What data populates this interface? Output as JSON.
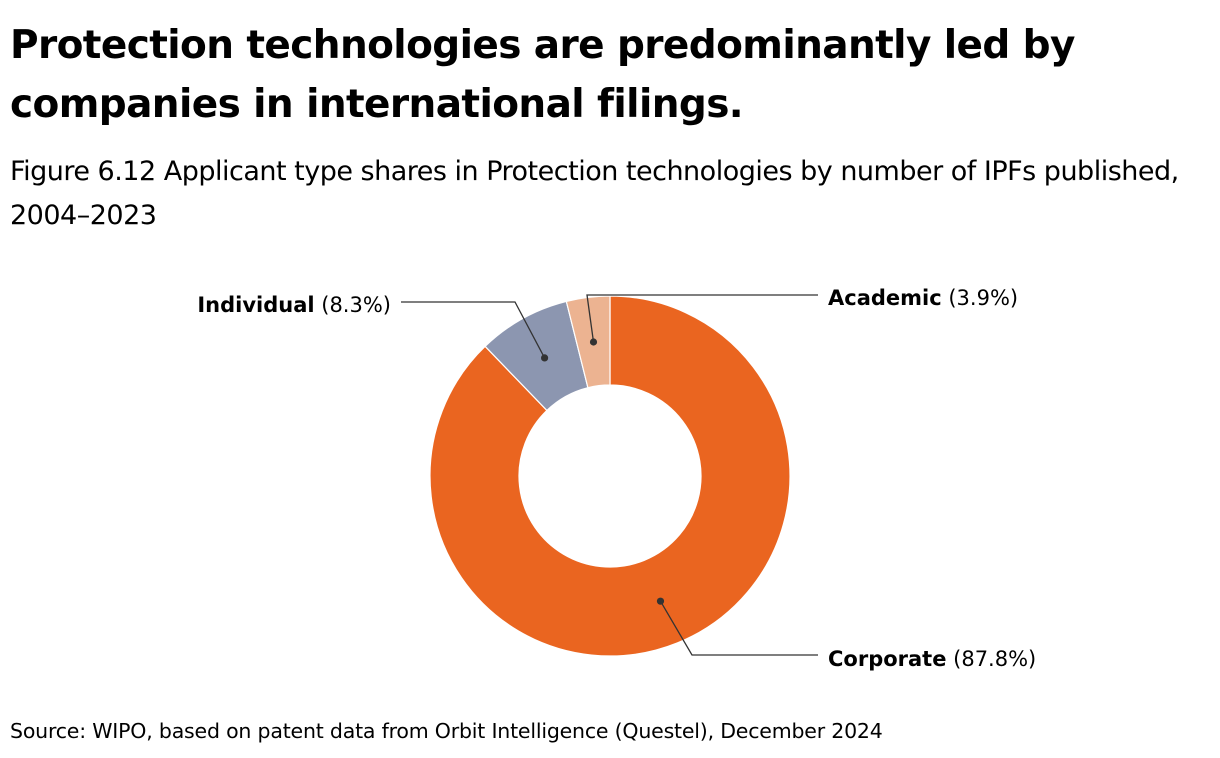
{
  "header": {
    "headline": "Protection technologies are predominantly led by companies in international filings.",
    "subtitle": "Figure 6.12 Applicant type shares in Protection technologies by number of IPFs published, 2004–2023"
  },
  "footer": {
    "source": "Source: WIPO, based on patent data from Orbit Intelligence (Questel), December 2024"
  },
  "chart_data": {
    "type": "pie",
    "variant": "donut",
    "title": "Applicant type shares in Protection technologies by number of IPFs published, 2004–2023",
    "unit": "%",
    "start": "12 o'clock",
    "direction": "clockwise",
    "slices": [
      {
        "name": "Corporate",
        "value": 87.8,
        "value_label": "(87.8%)",
        "color": "#ea6520",
        "label_side": "bottom-right"
      },
      {
        "name": "Individual",
        "value": 8.3,
        "value_label": "(8.3%)",
        "color": "#8c96b0",
        "label_side": "top-left"
      },
      {
        "name": "Academic",
        "value": 3.9,
        "value_label": "(3.9%)",
        "color": "#ecb391",
        "label_side": "top-right"
      }
    ]
  },
  "colors": {
    "text": "#000000",
    "leader": "#333333",
    "slice_border": "#ffffff"
  }
}
